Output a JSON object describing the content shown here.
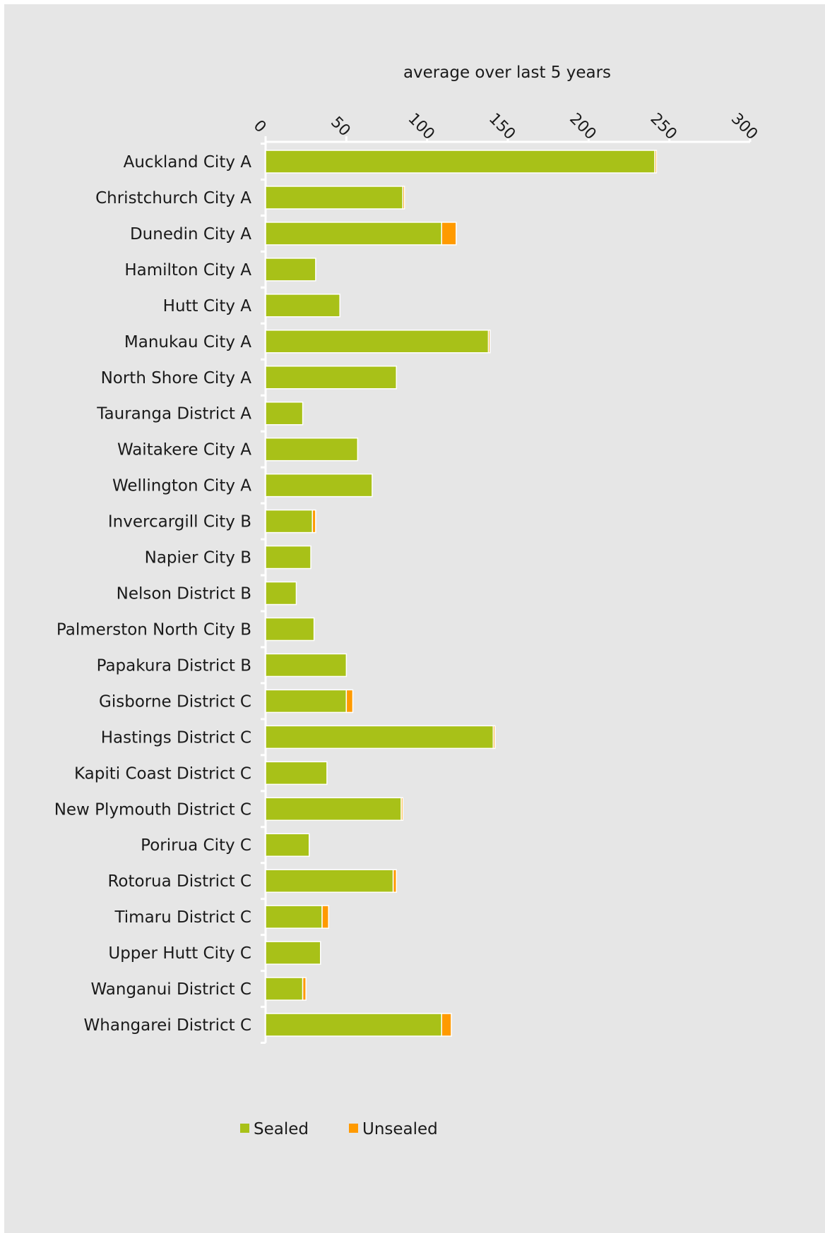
{
  "chart_data": {
    "type": "bar",
    "orientation": "horizontal",
    "stacked": true,
    "xlabel": "average over last 5 years",
    "xlim": [
      0,
      300
    ],
    "x_ticks": [
      "0",
      "50",
      "100",
      "150",
      "200",
      "250",
      "300"
    ],
    "x_axis_position": "top",
    "legend_position": "bottom",
    "categories": [
      "Auckland City A",
      "Christchurch City A",
      "Dunedin City A",
      "Hamilton City A",
      "Hutt City A",
      "Manukau City A",
      "North Shore City A",
      "Tauranga District A",
      "Waitakere City A",
      "Wellington City A",
      "Invercargill City B",
      "Napier City B",
      "Nelson District B",
      "Palmerston North City B",
      "Papakura District B",
      "Gisborne District C",
      "Hastings District C",
      "Kapiti Coast District C",
      "New Plymouth District C",
      "Porirua City C",
      "Rotorua District C",
      "Timaru District C",
      "Upper Hutt City C",
      "Wanganui District C",
      "Whangarei District C"
    ],
    "series": [
      {
        "name": "Sealed",
        "color": "#a8c118",
        "values": [
          241,
          85,
          109,
          31,
          46,
          138,
          81,
          23,
          57,
          66,
          29,
          28,
          19,
          30,
          50,
          50,
          141,
          38,
          84,
          27,
          79,
          35,
          34,
          23,
          109
        ]
      },
      {
        "name": "Unsealed",
        "color": "#ff9a00",
        "values": [
          1,
          1,
          9,
          0,
          0,
          1,
          0,
          0,
          0,
          0,
          2,
          0,
          0,
          0,
          0,
          4,
          1,
          0,
          1,
          0,
          2,
          4,
          0,
          2,
          6
        ]
      }
    ]
  }
}
